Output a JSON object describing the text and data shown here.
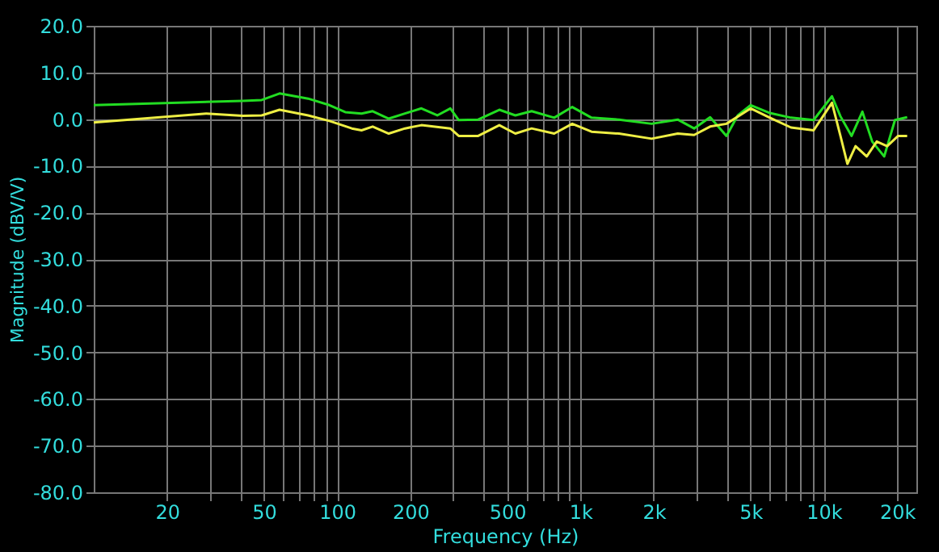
{
  "chart_data": {
    "type": "line",
    "xlabel": "Frequency (Hz)",
    "ylabel": "Magnitude (dBV/V)",
    "log": "x",
    "grid": true,
    "legend": false,
    "marker": "none",
    "line_style": "solid",
    "xlim": [
      10,
      24000
    ],
    "ylim": [
      -80,
      20
    ],
    "xticks": [
      20,
      {
        "value": 30,
        "label": null
      },
      {
        "value": 40,
        "label": null
      },
      50,
      {
        "value": 60,
        "label": null
      },
      {
        "value": 70,
        "label": null
      },
      {
        "value": 80,
        "label": null
      },
      {
        "value": 90,
        "label": null
      },
      100,
      200,
      {
        "value": 300,
        "label": null
      },
      {
        "value": 400,
        "label": null
      },
      500,
      {
        "value": 600,
        "label": null
      },
      {
        "value": 700,
        "label": null
      },
      {
        "value": 800,
        "label": null
      },
      {
        "value": 900,
        "label": null
      },
      {
        "value": 1000,
        "label": "1k"
      },
      {
        "value": 2000,
        "label": "2k"
      },
      {
        "value": 3000,
        "label": null
      },
      {
        "value": 4000,
        "label": null
      },
      {
        "value": 5000,
        "label": "5k"
      },
      {
        "value": 6000,
        "label": null
      },
      {
        "value": 7000,
        "label": null
      },
      {
        "value": 8000,
        "label": null
      },
      {
        "value": 9000,
        "label": null
      },
      {
        "value": 10000,
        "label": "10k"
      },
      {
        "value": 20000,
        "label": "20k"
      }
    ],
    "yticks": [
      {
        "value": 20,
        "label": "20.0"
      },
      {
        "value": 10,
        "label": "10.0"
      },
      {
        "value": 0,
        "label": "0.0"
      },
      {
        "value": -10,
        "label": "-10.0"
      },
      {
        "value": -20,
        "label": "-20.0"
      },
      {
        "value": -30,
        "label": "-30.0"
      },
      {
        "value": -40,
        "label": "-40.0"
      },
      {
        "value": -50,
        "label": "-50.0"
      },
      {
        "value": -60,
        "label": "-60.0"
      },
      {
        "value": -70,
        "label": "-70.0"
      },
      {
        "value": -80,
        "label": "-80.0"
      }
    ],
    "series": [
      {
        "color": "#22dd22",
        "x": [
          10,
          41,
          49,
          58,
          76,
          93,
          108,
          126,
          140,
          163,
          190,
          222,
          258,
          292,
          316,
          380,
          464,
          540,
          630,
          780,
          925,
          1110,
          1440,
          1960,
          2510,
          2930,
          3410,
          3980,
          4430,
          5010,
          6000,
          7330,
          9080,
          10800,
          11700,
          13000,
          14400,
          15800,
          17700,
          19600,
          22000
        ],
        "values": [
          3.0,
          3.9,
          4.1,
          5.5,
          4.4,
          3.0,
          1.5,
          1.2,
          1.7,
          0.1,
          1.2,
          2.3,
          0.8,
          2.3,
          -0.2,
          -0.1,
          2.0,
          0.8,
          1.7,
          0.3,
          2.6,
          0.3,
          -0.1,
          -1.0,
          -0.1,
          -2.0,
          0.4,
          -3.6,
          0.8,
          3.0,
          1.3,
          0.3,
          -0.2,
          4.9,
          0.6,
          -3.6,
          1.6,
          -4.8,
          -8.0,
          -0.2,
          0.4
        ]
      },
      {
        "color": "#eeee44",
        "x": [
          10,
          29,
          41,
          49,
          58,
          76,
          93,
          115,
          126,
          140,
          163,
          190,
          222,
          292,
          316,
          380,
          464,
          540,
          630,
          780,
          925,
          1110,
          1440,
          1960,
          2510,
          2930,
          3410,
          3980,
          5010,
          6000,
          7330,
          9080,
          10800,
          11700,
          12500,
          13500,
          15000,
          16500,
          18200,
          20200,
          22000
        ],
        "values": [
          -0.7,
          1.2,
          0.7,
          0.8,
          2.0,
          0.8,
          -0.4,
          -2.0,
          -2.4,
          -1.6,
          -3.1,
          -2.0,
          -1.3,
          -2.0,
          -3.6,
          -3.6,
          -1.3,
          -3.1,
          -2.0,
          -3.1,
          -1.0,
          -2.7,
          -3.1,
          -4.2,
          -3.1,
          -3.4,
          -1.6,
          -1.0,
          2.3,
          0.3,
          -1.8,
          -2.4,
          3.5,
          -3.6,
          -9.6,
          -5.8,
          -8.0,
          -4.8,
          -5.8,
          -3.6,
          -3.6
        ]
      }
    ]
  }
}
